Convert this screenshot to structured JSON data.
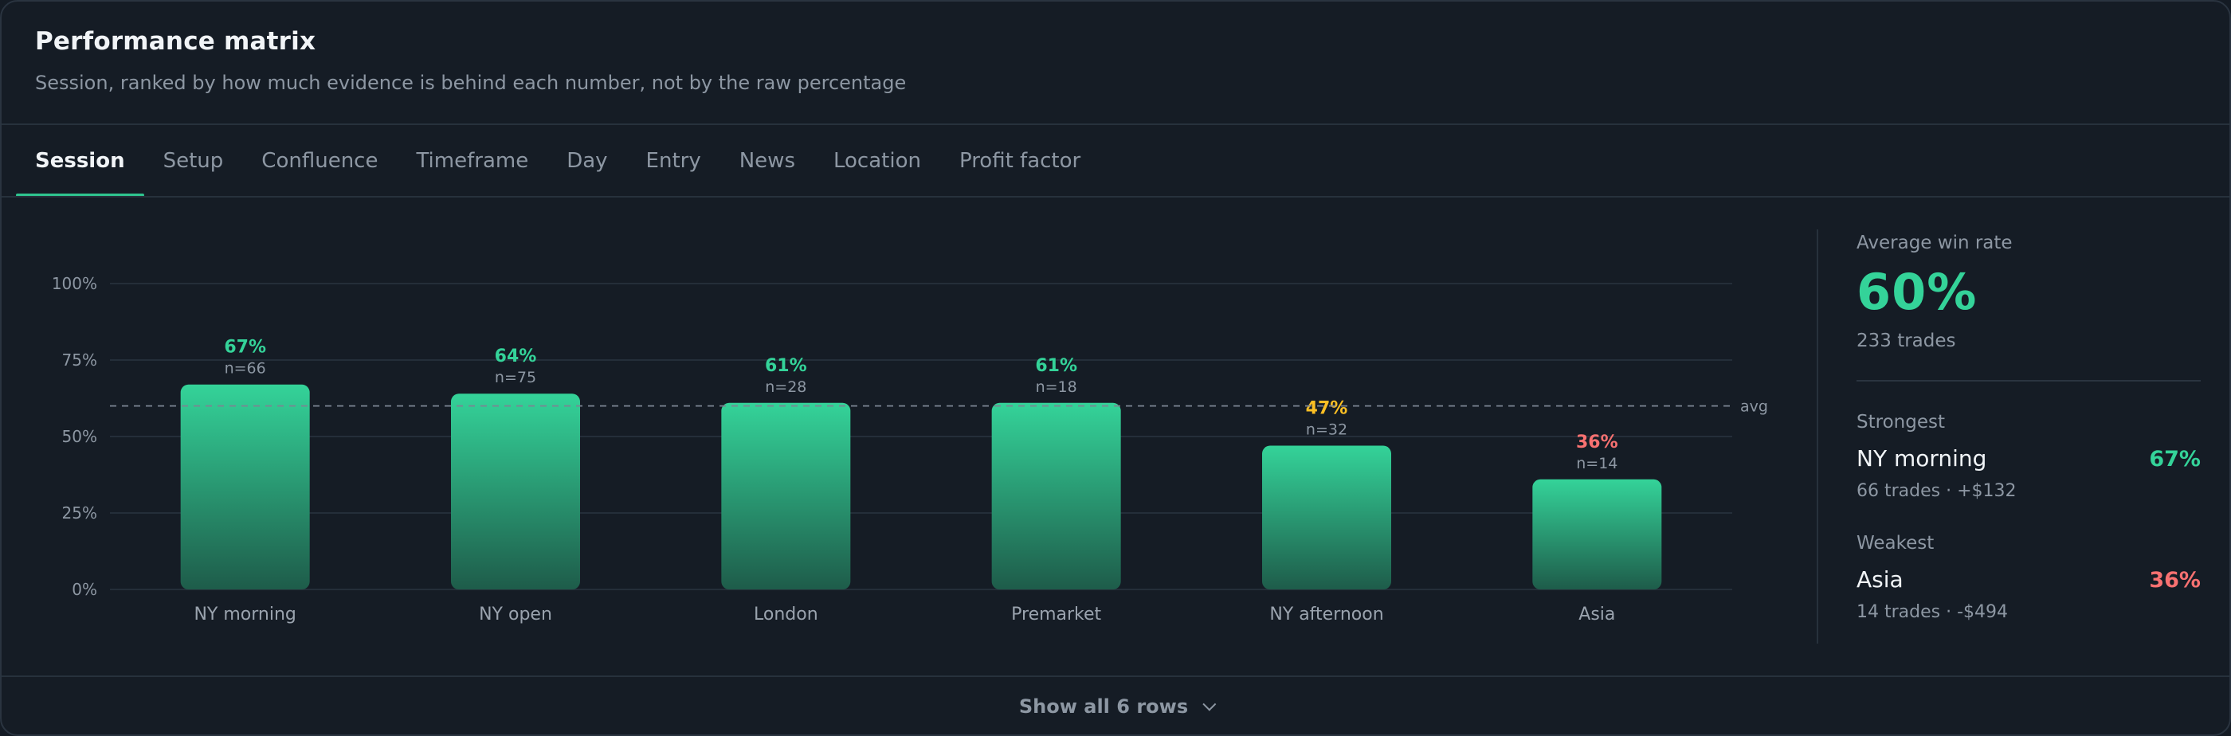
{
  "header": {
    "title": "Performance matrix",
    "subtitle": "Session, ranked by how much evidence is behind each number, not by the raw percentage"
  },
  "tabs": [
    {
      "label": "Session",
      "active": true
    },
    {
      "label": "Setup",
      "active": false
    },
    {
      "label": "Confluence",
      "active": false
    },
    {
      "label": "Timeframe",
      "active": false
    },
    {
      "label": "Day",
      "active": false
    },
    {
      "label": "Entry",
      "active": false
    },
    {
      "label": "News",
      "active": false
    },
    {
      "label": "Location",
      "active": false
    },
    {
      "label": "Profit factor",
      "active": false
    }
  ],
  "chart_data": {
    "type": "bar",
    "categories": [
      "NY morning",
      "NY open",
      "London",
      "Premarket",
      "NY afternoon",
      "Asia"
    ],
    "values": [
      67,
      64,
      61,
      61,
      47,
      36
    ],
    "value_labels": [
      "67%",
      "64%",
      "61%",
      "61%",
      "47%",
      "36%"
    ],
    "sample_labels": [
      "n=66",
      "n=75",
      "n=28",
      "n=18",
      "n=32",
      "n=14"
    ],
    "ylim": [
      0,
      100
    ],
    "yticks": [
      0,
      25,
      50,
      75,
      100
    ],
    "ytick_labels": [
      "0%",
      "25%",
      "50%",
      "75%",
      "100%"
    ],
    "reference_line": {
      "value": 60,
      "label": "avg"
    },
    "grid": true,
    "colors": {
      "bar_top": "#34d399",
      "bar_bottom": "#1e5c4a",
      "label_high": "#34d399",
      "label_mid": "#fbbf24",
      "label_low": "#f87171"
    }
  },
  "summary": {
    "avg_label": "Average win rate",
    "avg_value": "60%",
    "avg_trades": "233 trades",
    "strongest_label": "Strongest",
    "strongest_name": "NY morning",
    "strongest_pct": "67%",
    "strongest_meta": "66 trades · +$132",
    "weakest_label": "Weakest",
    "weakest_name": "Asia",
    "weakest_pct": "36%",
    "weakest_meta": "14 trades · -$494"
  },
  "footer": {
    "show_all_label": "Show all 6 rows"
  },
  "colors": {
    "accent": "#2fc48f",
    "positive": "#34d399",
    "negative": "#f87171",
    "warning": "#fbbf24"
  }
}
